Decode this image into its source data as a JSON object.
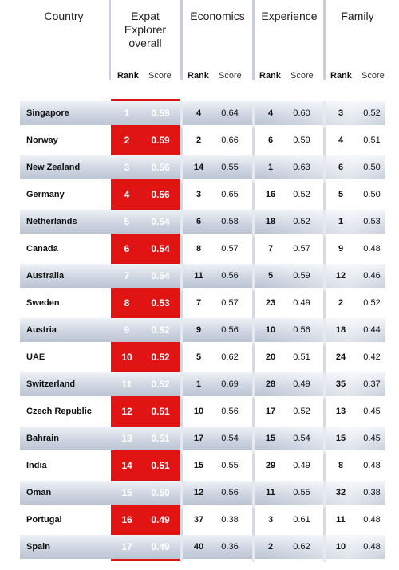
{
  "headers": {
    "country": "Country",
    "expat_line1": "Expat",
    "expat_line2": "Explorer",
    "expat_line3": "overall",
    "economics": "Economics",
    "experience": "Experience",
    "family": "Family",
    "rank": "Rank",
    "score": "Score"
  },
  "rows": [
    {
      "country": "Singapore",
      "rank": "1",
      "score": "0.59",
      "econ_rank": "4",
      "econ_score": "0.64",
      "exp_rank": "4",
      "exp_score": "0.60",
      "fam_rank": "3",
      "fam_score": "0.52"
    },
    {
      "country": "Norway",
      "rank": "2",
      "score": "0.59",
      "econ_rank": "2",
      "econ_score": "0.66",
      "exp_rank": "6",
      "exp_score": "0.59",
      "fam_rank": "4",
      "fam_score": "0.51"
    },
    {
      "country": "New Zealand",
      "rank": "3",
      "score": "0.56",
      "econ_rank": "14",
      "econ_score": "0.55",
      "exp_rank": "1",
      "exp_score": "0.63",
      "fam_rank": "6",
      "fam_score": "0.50"
    },
    {
      "country": "Germany",
      "rank": "4",
      "score": "0.56",
      "econ_rank": "3",
      "econ_score": "0.65",
      "exp_rank": "16",
      "exp_score": "0.52",
      "fam_rank": "5",
      "fam_score": "0.50"
    },
    {
      "country": "Netherlands",
      "rank": "5",
      "score": "0.54",
      "econ_rank": "6",
      "econ_score": "0.58",
      "exp_rank": "18",
      "exp_score": "0.52",
      "fam_rank": "1",
      "fam_score": "0.53"
    },
    {
      "country": "Canada",
      "rank": "6",
      "score": "0.54",
      "econ_rank": "8",
      "econ_score": "0.57",
      "exp_rank": "7",
      "exp_score": "0.57",
      "fam_rank": "9",
      "fam_score": "0.48"
    },
    {
      "country": "Australia",
      "rank": "7",
      "score": "0.54",
      "econ_rank": "11",
      "econ_score": "0.56",
      "exp_rank": "5",
      "exp_score": "0.59",
      "fam_rank": "12",
      "fam_score": "0.46"
    },
    {
      "country": "Sweden",
      "rank": "8",
      "score": "0.53",
      "econ_rank": "7",
      "econ_score": "0.57",
      "exp_rank": "23",
      "exp_score": "0.49",
      "fam_rank": "2",
      "fam_score": "0.52"
    },
    {
      "country": "Austria",
      "rank": "9",
      "score": "0.52",
      "econ_rank": "9",
      "econ_score": "0.56",
      "exp_rank": "10",
      "exp_score": "0.56",
      "fam_rank": "18",
      "fam_score": "0.44"
    },
    {
      "country": "UAE",
      "rank": "10",
      "score": "0.52",
      "econ_rank": "5",
      "econ_score": "0.62",
      "exp_rank": "20",
      "exp_score": "0.51",
      "fam_rank": "24",
      "fam_score": "0.42"
    },
    {
      "country": "Switzerland",
      "rank": "11",
      "score": "0.52",
      "econ_rank": "1",
      "econ_score": "0.69",
      "exp_rank": "28",
      "exp_score": "0.49",
      "fam_rank": "35",
      "fam_score": "0.37"
    },
    {
      "country": "Czech Republic",
      "rank": "12",
      "score": "0.51",
      "econ_rank": "10",
      "econ_score": "0.56",
      "exp_rank": "17",
      "exp_score": "0.52",
      "fam_rank": "13",
      "fam_score": "0.45"
    },
    {
      "country": "Bahrain",
      "rank": "13",
      "score": "0.51",
      "econ_rank": "17",
      "econ_score": "0.54",
      "exp_rank": "15",
      "exp_score": "0.54",
      "fam_rank": "15",
      "fam_score": "0.45"
    },
    {
      "country": "India",
      "rank": "14",
      "score": "0.51",
      "econ_rank": "15",
      "econ_score": "0.55",
      "exp_rank": "29",
      "exp_score": "0.49",
      "fam_rank": "8",
      "fam_score": "0.48"
    },
    {
      "country": "Oman",
      "rank": "15",
      "score": "0.50",
      "econ_rank": "12",
      "econ_score": "0.56",
      "exp_rank": "11",
      "exp_score": "0.55",
      "fam_rank": "32",
      "fam_score": "0.38"
    },
    {
      "country": "Portugal",
      "rank": "16",
      "score": "0.49",
      "econ_rank": "37",
      "econ_score": "0.38",
      "exp_rank": "3",
      "exp_score": "0.61",
      "fam_rank": "11",
      "fam_score": "0.48"
    },
    {
      "country": "Spain",
      "rank": "17",
      "score": "0.49",
      "econ_rank": "40",
      "econ_score": "0.36",
      "exp_rank": "2",
      "exp_score": "0.62",
      "fam_rank": "10",
      "fam_score": "0.48"
    }
  ],
  "colors": {
    "accent_red": "#e11414",
    "row_shade": "#cfd6e2",
    "separator": "#c9ced8"
  }
}
